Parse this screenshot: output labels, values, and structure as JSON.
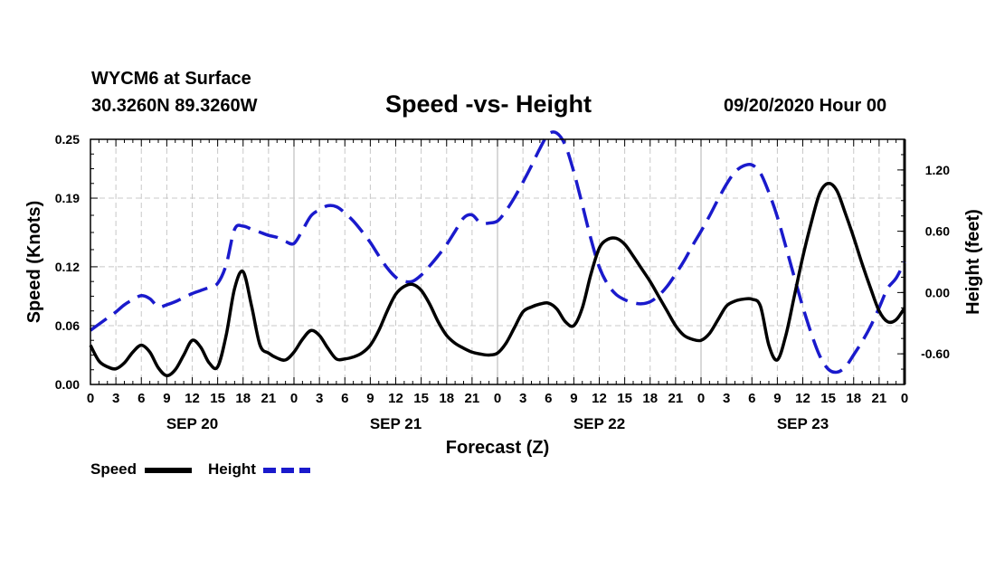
{
  "header": {
    "station": "WYCM6 at Surface",
    "coords": "30.3260N 89.3260W",
    "title": "Speed -vs- Height",
    "date": "09/20/2020 Hour 00"
  },
  "chart_data": {
    "type": "line",
    "title": "Speed -vs- Height",
    "xlabel": "Forecast (Z)",
    "ylabel_left": "Speed (Knots)",
    "ylabel_right": "Height (feet)",
    "xlim": [
      0,
      96
    ],
    "ylim_left": [
      0,
      0.25
    ],
    "ylim_right": [
      -0.9,
      1.5
    ],
    "grid": true,
    "x_tick_labels": [
      "0",
      "3",
      "6",
      "9",
      "12",
      "15",
      "18",
      "21",
      "0",
      "3",
      "6",
      "9",
      "12",
      "15",
      "18",
      "21",
      "0",
      "3",
      "6",
      "9",
      "12",
      "15",
      "18",
      "21",
      "0",
      "3",
      "6",
      "9",
      "12",
      "15",
      "18",
      "21",
      "0"
    ],
    "y_left_tick_labels": [
      "0.00",
      "0.06",
      "0.12",
      "0.19",
      "0.25"
    ],
    "y_right_tick_labels": [
      "-0.60",
      "0.00",
      "0.60",
      "1.20"
    ],
    "day_labels": [
      "SEP 20",
      "SEP 21",
      "SEP 22",
      "SEP 23"
    ],
    "legend": [
      {
        "name": "Speed",
        "color": "#000000",
        "style": "solid"
      },
      {
        "name": "Height",
        "color": "#1a1acc",
        "style": "dashed"
      }
    ],
    "series": [
      {
        "name": "Speed",
        "axis": "left",
        "x": [
          0,
          1,
          2,
          3,
          4,
          5,
          6,
          7,
          8,
          9,
          10,
          11,
          12,
          13,
          14,
          15,
          16,
          17,
          18,
          19,
          20,
          21,
          22,
          23,
          24,
          25,
          26,
          27,
          28,
          29,
          30,
          31,
          32,
          33,
          34,
          35,
          36,
          37,
          38,
          39,
          40,
          41,
          42,
          43,
          44,
          45,
          46,
          47,
          48,
          49,
          50,
          51,
          52,
          53,
          54,
          55,
          56,
          57,
          58,
          59,
          60,
          61,
          62,
          63,
          64,
          65,
          66,
          67,
          68,
          69,
          70,
          71,
          72,
          73,
          74,
          75,
          76,
          77,
          78,
          79,
          80,
          81,
          82,
          83,
          84,
          85,
          86,
          87,
          88,
          89,
          90,
          91,
          92,
          93,
          94,
          95,
          96
        ],
        "values": [
          0.04,
          0.024,
          0.018,
          0.016,
          0.022,
          0.033,
          0.04,
          0.033,
          0.017,
          0.009,
          0.015,
          0.03,
          0.045,
          0.038,
          0.022,
          0.018,
          0.05,
          0.098,
          0.115,
          0.08,
          0.04,
          0.032,
          0.027,
          0.025,
          0.033,
          0.046,
          0.055,
          0.05,
          0.037,
          0.026,
          0.026,
          0.028,
          0.032,
          0.04,
          0.055,
          0.075,
          0.092,
          0.1,
          0.102,
          0.096,
          0.082,
          0.064,
          0.05,
          0.042,
          0.037,
          0.033,
          0.031,
          0.03,
          0.032,
          0.042,
          0.058,
          0.074,
          0.079,
          0.082,
          0.083,
          0.077,
          0.064,
          0.06,
          0.078,
          0.112,
          0.139,
          0.148,
          0.149,
          0.143,
          0.131,
          0.118,
          0.105,
          0.09,
          0.075,
          0.06,
          0.05,
          0.046,
          0.045,
          0.052,
          0.066,
          0.08,
          0.085,
          0.087,
          0.087,
          0.08,
          0.04,
          0.025,
          0.05,
          0.09,
          0.13,
          0.165,
          0.195,
          0.205,
          0.198,
          0.175,
          0.15,
          0.123,
          0.098,
          0.075,
          0.064,
          0.066,
          0.078
        ]
      },
      {
        "name": "Height",
        "axis": "right",
        "x": [
          0,
          1,
          2,
          3,
          4,
          5,
          6,
          7,
          8,
          9,
          10,
          11,
          12,
          13,
          14,
          15,
          16,
          17,
          18,
          19,
          20,
          21,
          22,
          23,
          24,
          25,
          26,
          27,
          28,
          29,
          30,
          31,
          32,
          33,
          34,
          35,
          36,
          37,
          38,
          39,
          40,
          41,
          42,
          43,
          44,
          45,
          46,
          47,
          48,
          49,
          50,
          51,
          52,
          53,
          54,
          55,
          56,
          57,
          58,
          59,
          60,
          61,
          62,
          63,
          64,
          65,
          66,
          67,
          68,
          69,
          70,
          71,
          72,
          73,
          74,
          75,
          76,
          77,
          78,
          79,
          80,
          81,
          82,
          83,
          84,
          85,
          86,
          87,
          88,
          89,
          90,
          91,
          92,
          93,
          94,
          95,
          96
        ],
        "values": [
          -0.37,
          -0.31,
          -0.25,
          -0.19,
          -0.12,
          -0.07,
          -0.03,
          -0.06,
          -0.14,
          -0.12,
          -0.09,
          -0.05,
          -0.01,
          0.02,
          0.05,
          0.09,
          0.27,
          0.62,
          0.65,
          0.62,
          0.59,
          0.56,
          0.54,
          0.5,
          0.48,
          0.61,
          0.75,
          0.81,
          0.85,
          0.84,
          0.78,
          0.7,
          0.6,
          0.49,
          0.36,
          0.24,
          0.15,
          0.11,
          0.11,
          0.17,
          0.26,
          0.36,
          0.47,
          0.6,
          0.73,
          0.76,
          0.68,
          0.68,
          0.7,
          0.8,
          0.93,
          1.08,
          1.24,
          1.41,
          1.55,
          1.56,
          1.44,
          1.18,
          0.86,
          0.53,
          0.25,
          0.08,
          -0.02,
          -0.07,
          -0.1,
          -0.11,
          -0.09,
          -0.03,
          0.06,
          0.18,
          0.31,
          0.46,
          0.6,
          0.75,
          0.91,
          1.06,
          1.18,
          1.24,
          1.25,
          1.17,
          0.98,
          0.74,
          0.45,
          0.15,
          -0.14,
          -0.4,
          -0.62,
          -0.75,
          -0.78,
          -0.73,
          -0.61,
          -0.48,
          -0.33,
          -0.15,
          0.04,
          0.14,
          0.3
        ]
      }
    ]
  }
}
